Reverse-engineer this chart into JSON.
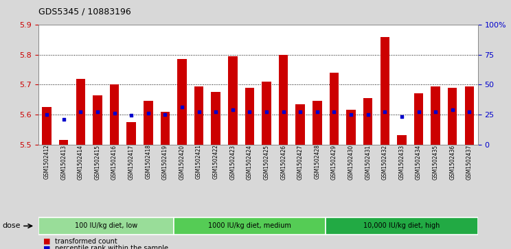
{
  "title": "GDS5345 / 10883196",
  "samples": [
    "GSM1502412",
    "GSM1502413",
    "GSM1502414",
    "GSM1502415",
    "GSM1502416",
    "GSM1502417",
    "GSM1502418",
    "GSM1502419",
    "GSM1502420",
    "GSM1502421",
    "GSM1502422",
    "GSM1502423",
    "GSM1502424",
    "GSM1502425",
    "GSM1502426",
    "GSM1502427",
    "GSM1502428",
    "GSM1502429",
    "GSM1502430",
    "GSM1502431",
    "GSM1502432",
    "GSM1502433",
    "GSM1502434",
    "GSM1502435",
    "GSM1502436",
    "GSM1502437"
  ],
  "bar_tops": [
    5.625,
    5.515,
    5.72,
    5.665,
    5.7,
    5.575,
    5.645,
    5.61,
    5.785,
    5.695,
    5.675,
    5.795,
    5.69,
    5.71,
    5.8,
    5.635,
    5.645,
    5.74,
    5.615,
    5.655,
    5.86,
    5.53,
    5.67,
    5.695,
    5.69,
    5.695
  ],
  "blue_dots": [
    5.6,
    5.583,
    5.61,
    5.61,
    5.605,
    5.598,
    5.605,
    5.6,
    5.625,
    5.61,
    5.61,
    5.615,
    5.608,
    5.61,
    5.608,
    5.608,
    5.608,
    5.61,
    5.6,
    5.6,
    5.61,
    5.593,
    5.608,
    5.61,
    5.615,
    5.608
  ],
  "bar_color": "#cc0000",
  "dot_color": "#0000cc",
  "ymin": 5.5,
  "ymax": 5.9,
  "yticks": [
    5.5,
    5.6,
    5.7,
    5.8,
    5.9
  ],
  "ytick_labels": [
    "5.5",
    "5.6",
    "5.7",
    "5.8",
    "5.9"
  ],
  "y2ticks": [
    0.0,
    0.25,
    0.5,
    0.75,
    1.0
  ],
  "y2tick_labels": [
    "0",
    "25",
    "50",
    "75",
    "100%"
  ],
  "grid_lines": [
    5.6,
    5.7,
    5.8
  ],
  "groups": [
    {
      "label": "100 IU/kg diet, low",
      "start": 0,
      "end": 8,
      "color": "#99dd99"
    },
    {
      "label": "1000 IU/kg diet, medium",
      "start": 8,
      "end": 17,
      "color": "#55cc55"
    },
    {
      "label": "10,000 IU/kg diet, high",
      "start": 17,
      "end": 26,
      "color": "#22aa44"
    }
  ],
  "dose_label": "dose",
  "legend_items": [
    {
      "label": "transformed count",
      "color": "#cc0000"
    },
    {
      "label": "percentile rank within the sample",
      "color": "#0000cc"
    }
  ],
  "bg_color": "#d8d8d8",
  "plot_bg": "#ffffff",
  "title_fontsize": 9,
  "bar_width": 0.55
}
